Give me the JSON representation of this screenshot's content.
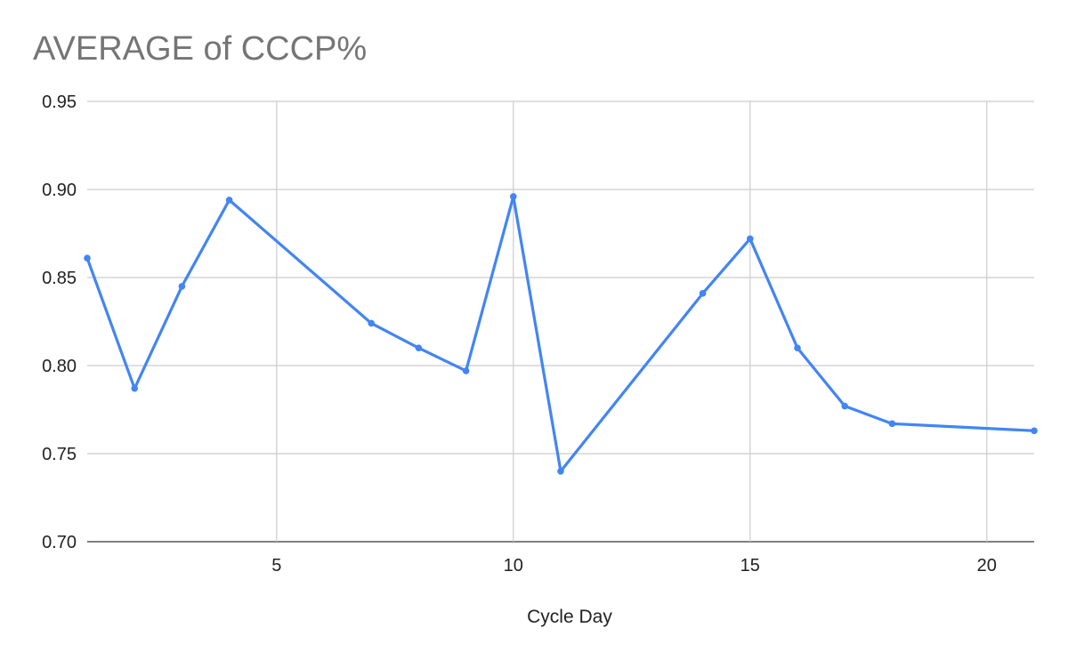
{
  "chart_data": {
    "type": "line",
    "title": "AVERAGE of CCCP%",
    "xlabel": "Cycle Day",
    "ylabel": "",
    "xlim": [
      1,
      21
    ],
    "ylim": [
      0.7,
      0.95
    ],
    "xticks": [
      5,
      10,
      15,
      20
    ],
    "yticks": [
      0.7,
      0.75,
      0.8,
      0.85,
      0.9,
      0.95
    ],
    "ytick_labels": [
      "0.70",
      "0.75",
      "0.80",
      "0.85",
      "0.90",
      "0.95"
    ],
    "grid": true,
    "legend": "none",
    "series": [
      {
        "color": "#4285f4",
        "points": [
          {
            "x": 1,
            "y": 0.861
          },
          {
            "x": 2,
            "y": 0.787
          },
          {
            "x": 3,
            "y": 0.845
          },
          {
            "x": 4,
            "y": 0.894
          },
          {
            "x": 7,
            "y": 0.824
          },
          {
            "x": 8,
            "y": 0.81
          },
          {
            "x": 9,
            "y": 0.797
          },
          {
            "x": 10,
            "y": 0.896
          },
          {
            "x": 11,
            "y": 0.74
          },
          {
            "x": 14,
            "y": 0.841
          },
          {
            "x": 15,
            "y": 0.872
          },
          {
            "x": 16,
            "y": 0.81
          },
          {
            "x": 17,
            "y": 0.777
          },
          {
            "x": 18,
            "y": 0.767
          },
          {
            "x": 21,
            "y": 0.763
          }
        ]
      }
    ]
  }
}
